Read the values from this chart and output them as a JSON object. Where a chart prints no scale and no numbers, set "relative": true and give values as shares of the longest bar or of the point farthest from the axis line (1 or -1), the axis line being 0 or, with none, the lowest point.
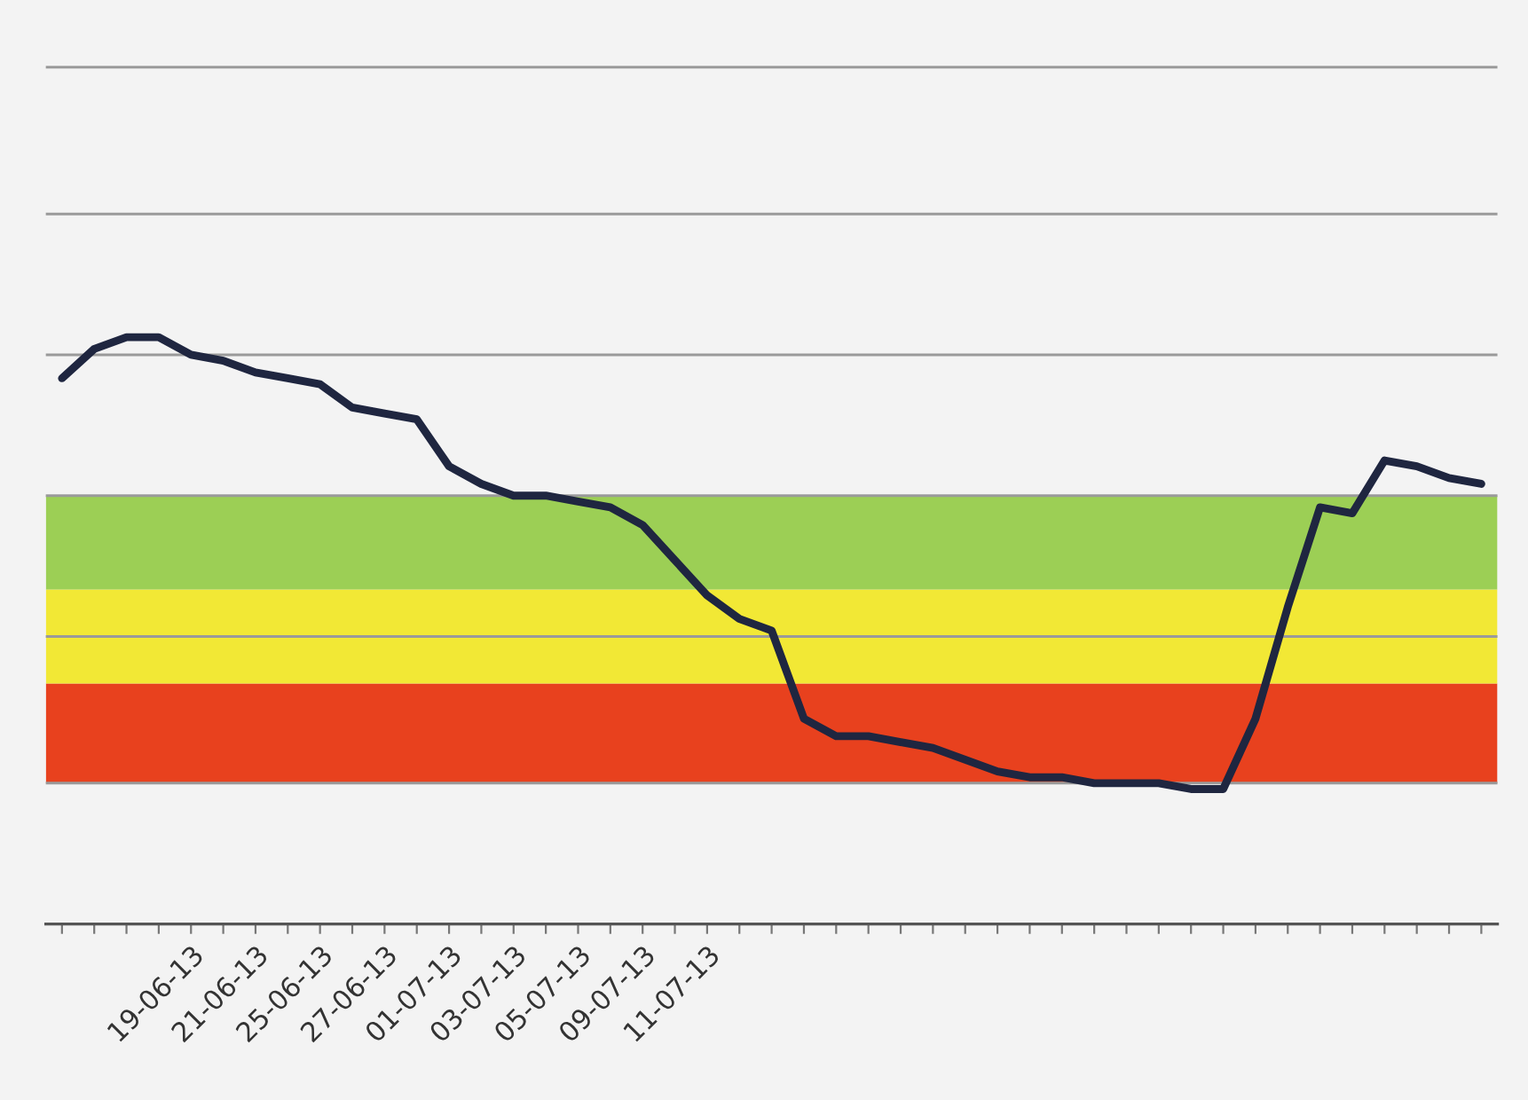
{
  "chart_data": {
    "type": "line",
    "relative": true,
    "categories": [
      null,
      null,
      null,
      null,
      "19-06-13",
      null,
      "21-06-13",
      null,
      "25-06-13",
      null,
      "27-06-13",
      null,
      "01-07-13",
      null,
      "03-07-13",
      null,
      "05-07-13",
      null,
      "09-07-13",
      null,
      "11-07-13",
      null,
      null,
      null,
      null,
      null,
      null,
      null,
      null,
      null,
      null,
      null,
      null,
      null,
      null,
      null,
      null,
      null,
      null,
      null,
      null,
      null,
      null,
      null,
      null
    ],
    "series": [
      {
        "color": "#1f2640",
        "values": [
          0.93,
          0.98,
          1.0,
          1.0,
          0.97,
          0.96,
          0.94,
          0.93,
          0.92,
          0.88,
          0.87,
          0.86,
          0.78,
          0.75,
          0.73,
          0.73,
          0.72,
          0.71,
          0.68,
          0.62,
          0.56,
          0.52,
          0.5,
          0.35,
          0.32,
          0.32,
          0.31,
          0.3,
          0.28,
          0.26,
          0.25,
          0.25,
          0.24,
          0.24,
          0.24,
          0.23,
          0.23,
          0.35,
          0.54,
          0.71,
          0.7,
          0.79,
          0.78,
          0.76,
          0.75
        ]
      }
    ],
    "bands": [
      {
        "axis": "y",
        "from": 0.24,
        "to": 0.41,
        "color": "#e8411e"
      },
      {
        "axis": "y",
        "from": 0.41,
        "to": 0.57,
        "color": "#f2e835"
      },
      {
        "axis": "y",
        "from": 0.57,
        "to": 0.73,
        "color": "#9ccf55"
      }
    ],
    "ref_lines": [
      {
        "axis": "y",
        "value": 0.24,
        "color": "#9a9a9a"
      },
      {
        "axis": "y",
        "value": 0.49,
        "color": "#9a9a9a"
      },
      {
        "axis": "y",
        "value": 0.73,
        "color": "#9a9a9a"
      },
      {
        "axis": "y",
        "value": 0.97,
        "color": "#9a9a9a"
      },
      {
        "axis": "y",
        "value": 1.21,
        "color": "#9a9a9a"
      },
      {
        "axis": "y",
        "value": 1.46,
        "color": "#9a9a9a"
      }
    ],
    "line_style": "solid"
  }
}
